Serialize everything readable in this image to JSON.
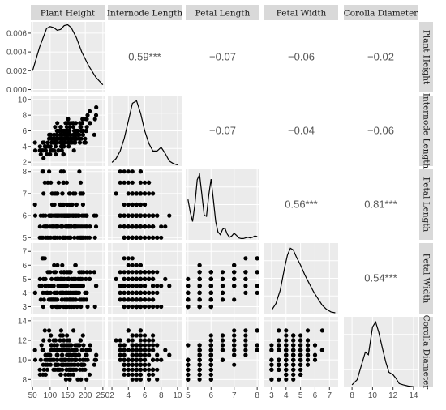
{
  "chart_data": {
    "type": "scatter",
    "variables": [
      "Plant Height",
      "Internode Length",
      "Petal Length",
      "Petal Width",
      "Corolla Diameter"
    ],
    "axes": [
      {
        "range": [
          45,
          255
        ],
        "ticks": [
          50,
          100,
          150,
          200,
          250
        ]
      },
      {
        "range": [
          1.5,
          10.5
        ],
        "ticks": [
          2,
          4,
          6,
          8,
          10
        ]
      },
      {
        "range": [
          4.9,
          8.1
        ],
        "ticks": [
          5,
          6,
          7,
          8
        ]
      },
      {
        "range": [
          2.5,
          7.6
        ],
        "ticks": [
          3,
          4,
          5,
          6,
          7
        ]
      },
      {
        "range": [
          7.2,
          14.4
        ],
        "ticks": [
          8,
          10,
          12,
          14
        ]
      }
    ],
    "density_y_ticks": [
      "0.000",
      "0.002",
      "0.004",
      "0.006"
    ],
    "density_y_range": [
      -0.0003,
      0.0072
    ],
    "correlations": [
      {
        "row": 0,
        "col": 1,
        "label": "0.59***"
      },
      {
        "row": 0,
        "col": 2,
        "label": "−0.07"
      },
      {
        "row": 0,
        "col": 3,
        "label": "−0.06"
      },
      {
        "row": 0,
        "col": 4,
        "label": "−0.02"
      },
      {
        "row": 1,
        "col": 2,
        "label": "−0.07"
      },
      {
        "row": 1,
        "col": 3,
        "label": "−0.04"
      },
      {
        "row": 1,
        "col": 4,
        "label": "−0.06"
      },
      {
        "row": 2,
        "col": 3,
        "label": "0.56***"
      },
      {
        "row": 2,
        "col": 4,
        "label": "0.81***"
      },
      {
        "row": 3,
        "col": 4,
        "label": "0.54***"
      }
    ],
    "densities": [
      {
        "var": 0,
        "x": [
          50,
          70,
          90,
          100,
          110,
          120,
          130,
          140,
          150,
          160,
          175,
          190,
          210,
          230,
          250
        ],
        "y": [
          0.002,
          0.0045,
          0.0065,
          0.0067,
          0.0066,
          0.0063,
          0.0064,
          0.0068,
          0.0069,
          0.0066,
          0.0055,
          0.004,
          0.0025,
          0.0013,
          0.0005
        ]
      },
      {
        "var": 1,
        "x": [
          2,
          2.5,
          3,
          3.5,
          4,
          4.5,
          5,
          5.5,
          6,
          6.5,
          7,
          7.5,
          8,
          8.5,
          9,
          9.5,
          10
        ],
        "y": [
          0.03,
          0.06,
          0.12,
          0.22,
          0.36,
          0.5,
          0.52,
          0.42,
          0.28,
          0.18,
          0.12,
          0.12,
          0.15,
          0.1,
          0.04,
          0.02,
          0.01
        ]
      },
      {
        "var": 2,
        "x": [
          5.0,
          5.1,
          5.2,
          5.3,
          5.4,
          5.5,
          5.6,
          5.7,
          5.8,
          5.9,
          6.0,
          6.1,
          6.2,
          6.3,
          6.4,
          6.5,
          6.6,
          6.7,
          6.8,
          6.9,
          7.0,
          7.1,
          7.2,
          7.3,
          7.4,
          7.5,
          7.6,
          7.7,
          7.8,
          7.9,
          8.0
        ],
        "y": [
          0.62,
          0.42,
          0.28,
          0.55,
          0.92,
          1.0,
          0.7,
          0.38,
          0.36,
          0.68,
          0.93,
          0.62,
          0.28,
          0.12,
          0.08,
          0.16,
          0.18,
          0.09,
          0.04,
          0.06,
          0.1,
          0.07,
          0.03,
          0.02,
          0.02,
          0.03,
          0.04,
          0.03,
          0.04,
          0.06,
          0.05
        ]
      },
      {
        "var": 3,
        "x": [
          3.0,
          3.3,
          3.6,
          3.9,
          4.1,
          4.3,
          4.5,
          4.7,
          5.0,
          5.3,
          5.6,
          5.9,
          6.2,
          6.5,
          6.8,
          7.1,
          7.4
        ],
        "y": [
          0.04,
          0.12,
          0.28,
          0.55,
          0.7,
          0.78,
          0.76,
          0.68,
          0.58,
          0.46,
          0.36,
          0.26,
          0.18,
          0.1,
          0.05,
          0.02,
          0.01
        ]
      },
      {
        "var": 4,
        "x": [
          8.0,
          8.5,
          9.0,
          9.3,
          9.6,
          10.0,
          10.3,
          10.6,
          11.0,
          11.3,
          11.6,
          12.0,
          12.3,
          12.6,
          13.0,
          13.5,
          14.0
        ],
        "y": [
          0.02,
          0.06,
          0.2,
          0.28,
          0.26,
          0.48,
          0.52,
          0.44,
          0.3,
          0.2,
          0.12,
          0.1,
          0.07,
          0.03,
          0.02,
          0.01,
          0.005
        ]
      }
    ]
  }
}
